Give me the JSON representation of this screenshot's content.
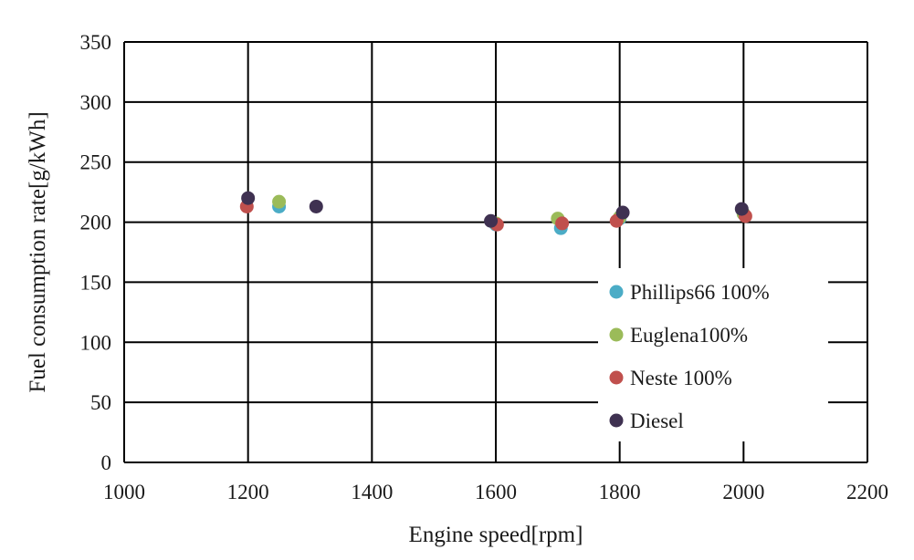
{
  "chart_data": {
    "type": "scatter",
    "xlabel": "Engine speed[rpm]",
    "ylabel": "Fuel consumption rate[g/kWh]",
    "xlim": [
      1000,
      2200
    ],
    "ylim": [
      0,
      350
    ],
    "x_ticks": [
      1000,
      1200,
      1400,
      1600,
      1800,
      2000,
      2200
    ],
    "y_ticks": [
      0,
      50,
      100,
      150,
      200,
      250,
      300,
      350
    ],
    "grid": true,
    "legend_position": "bottom-right",
    "series": [
      {
        "name": "Phillips66 100%",
        "color": "#4bacc6",
        "x": [
          1250,
          1600,
          1705,
          1800,
          2000
        ],
        "y": [
          213,
          198,
          195,
          203,
          207
        ]
      },
      {
        "name": "Euglena100%",
        "color": "#9bbb59",
        "x": [
          1250,
          1600,
          1700,
          1800,
          2000
        ],
        "y": [
          217,
          199,
          203,
          204,
          207
        ]
      },
      {
        "name": "Neste 100%",
        "color": "#c0504d",
        "x": [
          1198,
          1602,
          1707,
          1795,
          2003
        ],
        "y": [
          213,
          198,
          199,
          201,
          205
        ]
      },
      {
        "name": "Diesel",
        "color": "#3f3151",
        "x": [
          1200,
          1310,
          1592,
          1805,
          1997
        ],
        "y": [
          220,
          213,
          201,
          208,
          211
        ]
      }
    ]
  }
}
